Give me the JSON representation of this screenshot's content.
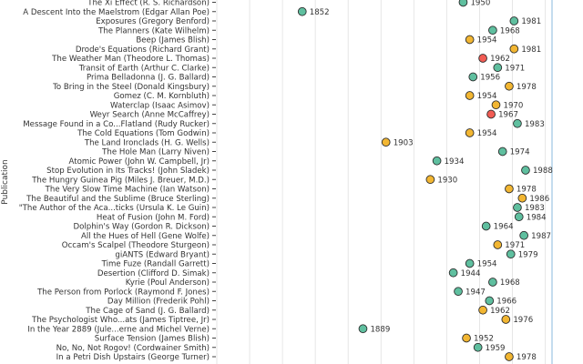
{
  "chart_data": {
    "type": "scatter",
    "title": "",
    "xlabel": "",
    "ylabel": "Publication",
    "xlim": [
      1800,
      2003
    ],
    "grid": true,
    "legend": "none",
    "colors": {
      "green": "#5fbf9f",
      "yellow": "#f2b632",
      "red": "#f25c54",
      "reference_line": "#9ec6e2"
    },
    "points": [
      {
        "label": "The Xi Effect (R. S. Richardson)",
        "year": 1950,
        "color": "green"
      },
      {
        "label": "A Descent Into the Maelstrom (Edgar Allan Poe)",
        "year": 1852,
        "color": "green"
      },
      {
        "label": "Exposures (Gregory Benford)",
        "year": 1981,
        "color": "green"
      },
      {
        "label": "The Planners (Kate Wilhelm)",
        "year": 1968,
        "color": "green"
      },
      {
        "label": "Beep (James Blish)",
        "year": 1954,
        "color": "yellow"
      },
      {
        "label": "Drode's Equations (Richard Grant)",
        "year": 1981,
        "color": "yellow"
      },
      {
        "label": "The Weather Man (Theodore L. Thomas)",
        "year": 1962,
        "color": "red"
      },
      {
        "label": "Transit of Earth (Arthur C. Clarke)",
        "year": 1971,
        "color": "green"
      },
      {
        "label": "Prima Belladonna (J. G. Ballard)",
        "year": 1956,
        "color": "green"
      },
      {
        "label": "To Bring in the Steel (Donald Kingsbury)",
        "year": 1978,
        "color": "yellow"
      },
      {
        "label": "Gomez (C. M. Kornbluth)",
        "year": 1954,
        "color": "yellow"
      },
      {
        "label": "Waterclap (Isaac Asimov)",
        "year": 1970,
        "color": "yellow"
      },
      {
        "label": "Weyr Search (Anne McCaffrey)",
        "year": 1967,
        "color": "red"
      },
      {
        "label": "Message Found in a Co...Flatland (Rudy Rucker)",
        "year": 1983,
        "color": "green"
      },
      {
        "label": "The Cold Equations (Tom Godwin)",
        "year": 1954,
        "color": "yellow"
      },
      {
        "label": "The Land Ironclads (H. G. Wells)",
        "year": 1903,
        "color": "yellow"
      },
      {
        "label": "The Hole Man (Larry Niven)",
        "year": 1974,
        "color": "green"
      },
      {
        "label": "Atomic Power (John W. Campbell, Jr)",
        "year": 1934,
        "color": "green"
      },
      {
        "label": "Stop Evolution in Its Tracks! (John Sladek)",
        "year": 1988,
        "color": "green"
      },
      {
        "label": "The Hungry Guinea Pig (Miles J. Breuer, M.D.)",
        "year": 1930,
        "color": "yellow"
      },
      {
        "label": "The Very Slow Time Machine (Ian Watson)",
        "year": 1978,
        "color": "yellow"
      },
      {
        "label": "The Beautiful and the Sublime (Bruce Sterling)",
        "year": 1986,
        "color": "yellow"
      },
      {
        "label": "\"The Author of the Aca...ticks (Ursula K. Le Guin)",
        "year": 1983,
        "color": "green"
      },
      {
        "label": "Heat of Fusion (John M. Ford)",
        "year": 1984,
        "color": "green"
      },
      {
        "label": "Dolphin's Way (Gordon R. Dickson)",
        "year": 1964,
        "color": "green"
      },
      {
        "label": "All the Hues of Hell (Gene Wolfe)",
        "year": 1987,
        "color": "green"
      },
      {
        "label": "Occam's Scalpel (Theodore Sturgeon)",
        "year": 1971,
        "color": "yellow"
      },
      {
        "label": "giANTS (Edward Bryant)",
        "year": 1979,
        "color": "green"
      },
      {
        "label": "Time Fuze (Randall Garrett)",
        "year": 1954,
        "color": "green"
      },
      {
        "label": "Desertion (Clifford D. Simak)",
        "year": 1944,
        "color": "green"
      },
      {
        "label": "Kyrie (Poul Anderson)",
        "year": 1968,
        "color": "green"
      },
      {
        "label": "The Person from Porlock (Raymond F. Jones)",
        "year": 1947,
        "color": "green"
      },
      {
        "label": "Day Million (Frederik Pohl)",
        "year": 1966,
        "color": "green"
      },
      {
        "label": "The Cage of Sand (J. G. Ballard)",
        "year": 1962,
        "color": "yellow"
      },
      {
        "label": "The Psychologist Who...ats (James Tiptree, Jr)",
        "year": 1976,
        "color": "yellow"
      },
      {
        "label": "In the Year 2889 (Jule...erne and Michel Verne)",
        "year": 1889,
        "color": "green"
      },
      {
        "label": "Surface Tension (James Blish)",
        "year": 1952,
        "color": "yellow"
      },
      {
        "label": "No, No, Not Rogov! (Cordwainer Smith)",
        "year": 1959,
        "color": "green"
      },
      {
        "label": "In a Petri Dish Upstairs (George Turner)",
        "year": 1978,
        "color": "yellow"
      }
    ]
  }
}
